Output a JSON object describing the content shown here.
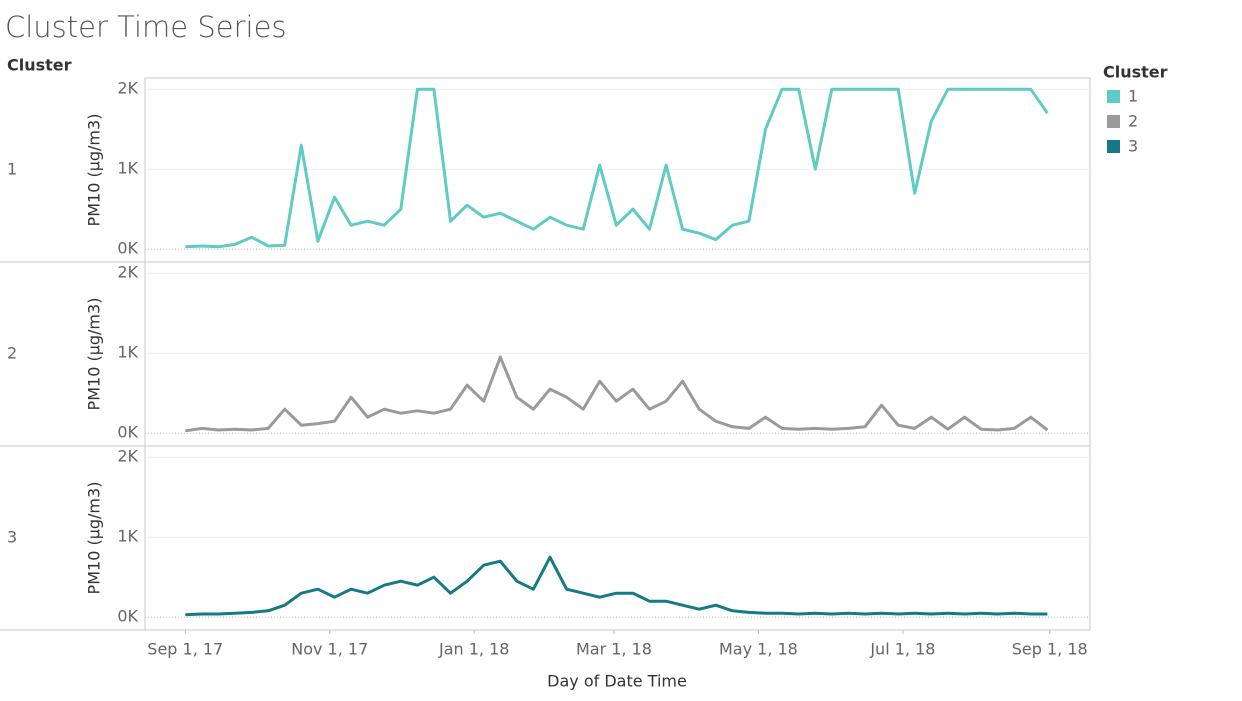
{
  "chart_data": {
    "type": "line",
    "title": "Cluster Time Series",
    "facet_label": "Cluster",
    "legend_title": "Cluster",
    "x_label": "Day of Date Time",
    "y_label": "PM10 (µg/m3)",
    "xlim": [
      "2017-08-15",
      "2018-09-18"
    ],
    "xticks": [
      {
        "value": "2017-09-01",
        "label": "Sep 1, 17"
      },
      {
        "value": "2017-11-01",
        "label": "Nov 1, 17"
      },
      {
        "value": "2018-01-01",
        "label": "Jan 1, 18"
      },
      {
        "value": "2018-03-01",
        "label": "Mar 1, 18"
      },
      {
        "value": "2018-05-01",
        "label": "May 1, 18"
      },
      {
        "value": "2018-07-01",
        "label": "Jul 1, 18"
      },
      {
        "value": "2018-09-01",
        "label": "Sep 1, 18"
      }
    ],
    "ylim": [
      -160,
      2140
    ],
    "yticks": [
      {
        "value": 0,
        "label": "0K"
      },
      {
        "value": 1000,
        "label": "1K"
      },
      {
        "value": 2000,
        "label": "2K"
      }
    ],
    "grid": true,
    "x": [
      "2017-09-01",
      "2017-09-08",
      "2017-09-15",
      "2017-09-22",
      "2017-09-29",
      "2017-10-06",
      "2017-10-13",
      "2017-10-20",
      "2017-10-27",
      "2017-11-03",
      "2017-11-10",
      "2017-11-17",
      "2017-11-24",
      "2017-12-01",
      "2017-12-08",
      "2017-12-15",
      "2017-12-22",
      "2017-12-29",
      "2018-01-05",
      "2018-01-12",
      "2018-01-19",
      "2018-01-26",
      "2018-02-02",
      "2018-02-09",
      "2018-02-16",
      "2018-02-23",
      "2018-03-02",
      "2018-03-09",
      "2018-03-16",
      "2018-03-23",
      "2018-03-30",
      "2018-04-06",
      "2018-04-13",
      "2018-04-20",
      "2018-04-27",
      "2018-05-04",
      "2018-05-11",
      "2018-05-18",
      "2018-05-25",
      "2018-06-01",
      "2018-06-08",
      "2018-06-15",
      "2018-06-22",
      "2018-06-29",
      "2018-07-06",
      "2018-07-13",
      "2018-07-20",
      "2018-07-27",
      "2018-08-03",
      "2018-08-10",
      "2018-08-17",
      "2018-08-24",
      "2018-08-31"
    ],
    "series": [
      {
        "name": "1",
        "color": "#5fcbc7",
        "values": [
          30,
          40,
          30,
          60,
          150,
          40,
          50,
          1300,
          100,
          650,
          300,
          350,
          300,
          500,
          2000,
          2000,
          350,
          550,
          400,
          450,
          350,
          250,
          400,
          300,
          250,
          1050,
          300,
          500,
          250,
          1050,
          250,
          200,
          120,
          300,
          350,
          1500,
          2000,
          2000,
          1000,
          2000,
          2000,
          2000,
          2000,
          2000,
          700,
          1600,
          2000,
          2000,
          2000,
          2000,
          2000,
          2000,
          1700
        ]
      },
      {
        "name": "2",
        "color": "#9a9a9a",
        "values": [
          30,
          60,
          40,
          50,
          40,
          60,
          300,
          100,
          120,
          150,
          450,
          200,
          300,
          250,
          280,
          250,
          300,
          600,
          400,
          950,
          450,
          300,
          550,
          450,
          300,
          650,
          400,
          550,
          300,
          400,
          650,
          300,
          150,
          80,
          60,
          200,
          60,
          50,
          60,
          50,
          60,
          80,
          350,
          100,
          60,
          200,
          50,
          200,
          50,
          40,
          60,
          200,
          40
        ]
      },
      {
        "name": "3",
        "color": "#157a85",
        "values": [
          30,
          40,
          40,
          50,
          60,
          80,
          150,
          300,
          350,
          250,
          350,
          300,
          400,
          450,
          400,
          500,
          300,
          450,
          650,
          700,
          450,
          350,
          750,
          350,
          300,
          250,
          300,
          300,
          200,
          200,
          150,
          100,
          150,
          80,
          60,
          50,
          50,
          40,
          50,
          40,
          50,
          40,
          50,
          40,
          50,
          40,
          50,
          40,
          50,
          40,
          50,
          40,
          40
        ]
      }
    ]
  }
}
